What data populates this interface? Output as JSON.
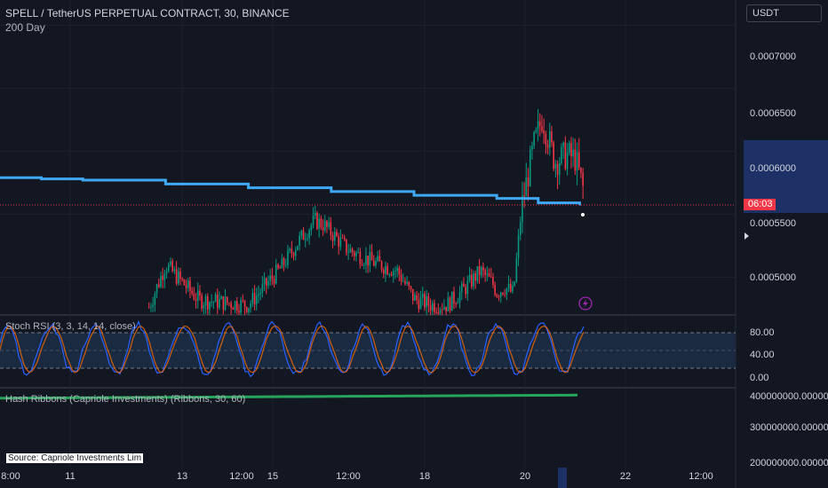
{
  "header": {
    "symbol_line": "SPELL / TetherUS PERPETUAL CONTRACT, 30, BINANCE",
    "ma_label": "200 Day"
  },
  "currency_selector": {
    "label": "USDT"
  },
  "price_axis": {
    "labels": [
      "0.0007000",
      "0.0006500",
      "0.0006000",
      "0.0005500",
      "0.0005000"
    ],
    "countdown": "06:03",
    "countdown_color": "#f23645"
  },
  "stoch_rsi": {
    "label": "Stoch RSI (3, 3, 14, 14, close)",
    "axis_labels": [
      "80.00",
      "40.00",
      "0.00"
    ]
  },
  "hash_ribbons": {
    "label": "Hash Ribbons (Capriole Investments) (Ribbons, 30, 60)",
    "axis_labels": [
      "400000000.0000000",
      "300000000.0000000",
      "200000000.0000000"
    ],
    "source_label": "Source: Capriole Investments Lim"
  },
  "time_axis": {
    "labels": [
      "8:00",
      "11",
      "13",
      "12:00",
      "15",
      "12:00",
      "18",
      "20",
      "22",
      "12:00"
    ]
  },
  "icons": {
    "lightning": "lightning-icon",
    "arrow": "arrow-right-icon"
  },
  "colors": {
    "background": "#131722",
    "up_candle": "#089981",
    "down_candle": "#f23645",
    "ma_line": "#3fa9f5",
    "stoch_k": "#2962ff",
    "stoch_d": "#ff6d00",
    "hash_ribbon": "#26a65b"
  },
  "chart_data": {
    "type": "line",
    "title": "SPELL / TetherUS PERPETUAL CONTRACT, 30, BINANCE",
    "xlabel": "",
    "ylabel": "",
    "ylim": [
      0.00047,
      0.00072
    ],
    "x_tick_labels": [
      "8:00",
      "11",
      "13",
      "12:00",
      "15",
      "12:00",
      "18",
      "20",
      "22",
      "12:00"
    ],
    "series": [
      {
        "name": "200 Day",
        "x": [
          0,
          0.05,
          0.1,
          0.2,
          0.3,
          0.4,
          0.5,
          0.6,
          0.65,
          0.7
        ],
        "values": [
          0.000579,
          0.000578,
          0.000577,
          0.000574,
          0.000571,
          0.000568,
          0.000565,
          0.0005625,
          0.000559,
          0.000557
        ]
      },
      {
        "name": "",
        "x": [
          0.18,
          0.2,
          0.24,
          0.3,
          0.34,
          0.36,
          0.38,
          0.39,
          0.42,
          0.45,
          0.48,
          0.5,
          0.52,
          0.54,
          0.56,
          0.58,
          0.595,
          0.6,
          0.61,
          0.62,
          0.63,
          0.645,
          0.655,
          0.67,
          0.685,
          0.695,
          0.705
        ],
        "values": [
          0.000476,
          0.00051,
          0.000482,
          0.000478,
          0.000508,
          0.000528,
          0.000545,
          0.000542,
          0.000522,
          0.000512,
          0.000505,
          0.000483,
          0.000478,
          0.000478,
          0.00049,
          0.000505,
          0.000495,
          0.000488,
          0.000492,
          0.000487,
          0.000556,
          0.000605,
          0.000627,
          0.000592,
          0.000597,
          0.000594,
          0.000568
        ]
      }
    ],
    "grid": true
  }
}
